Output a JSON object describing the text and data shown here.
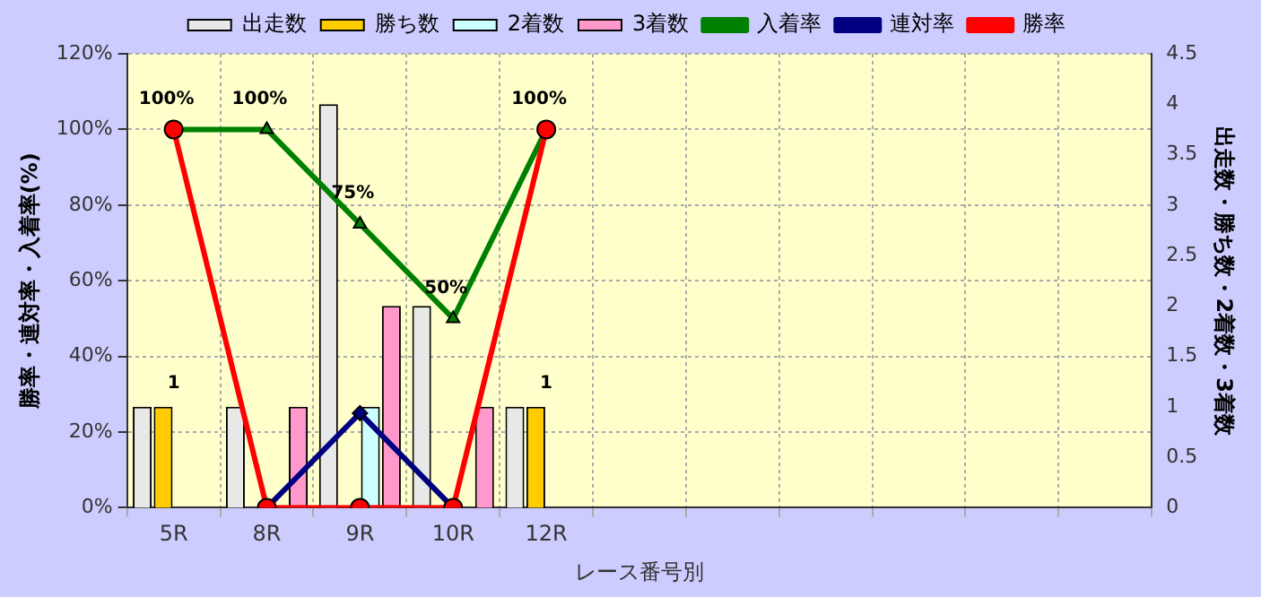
{
  "chart_data": {
    "type": "bar",
    "xlabel": "レース番号別",
    "ylabel": "勝率・連対率・入着率(%)",
    "y2label": "出走数・勝ち数・2着数・3着数",
    "categories": [
      "5R",
      "8R",
      "9R",
      "10R",
      "12R",
      null,
      null,
      null,
      null,
      null,
      null
    ],
    "series": [
      {
        "name": "出走数",
        "axis": "y2",
        "color": "#e8e8e8",
        "values": [
          1,
          1,
          4,
          2,
          1,
          null,
          null,
          null,
          null,
          null,
          null
        ]
      },
      {
        "name": "勝ち数",
        "axis": "y2",
        "color": "#ffcc00",
        "values": [
          1,
          0,
          0,
          0,
          1,
          null,
          null,
          null,
          null,
          null,
          null
        ],
        "value_labels": [
          "1",
          null,
          null,
          null,
          "1",
          null,
          null,
          null,
          null,
          null,
          null
        ]
      },
      {
        "name": "2着数",
        "axis": "y2",
        "color": "#ccffff",
        "values": [
          0,
          0,
          1,
          0,
          0,
          null,
          null,
          null,
          null,
          null,
          null
        ]
      },
      {
        "name": "3着数",
        "axis": "y2",
        "color": "#ff99cc",
        "values": [
          0,
          1,
          2,
          1,
          0,
          null,
          null,
          null,
          null,
          null,
          null
        ]
      },
      {
        "name": "入着率",
        "type": "line",
        "axis": "y",
        "color": "#008000",
        "marker": "triangle",
        "values": [
          100,
          100,
          75,
          50,
          100,
          null,
          null,
          null,
          null,
          null,
          null
        ],
        "value_labels": [
          "100%",
          "100%",
          "75%",
          "50%",
          "100%",
          null,
          null,
          null,
          null,
          null,
          null
        ]
      },
      {
        "name": "連対率",
        "type": "line",
        "axis": "y",
        "color": "#000080",
        "marker": "diamond",
        "values": [
          null,
          0,
          25,
          0,
          null,
          null,
          null,
          null,
          null,
          null,
          null
        ]
      },
      {
        "name": "勝率",
        "type": "line",
        "axis": "y",
        "color": "#ff0000",
        "marker": "circle",
        "values": [
          100,
          0,
          0,
          0,
          100,
          null,
          null,
          null,
          null,
          null,
          null
        ]
      }
    ],
    "ylim": [
      0,
      120
    ],
    "yticks": [
      {
        "value": 0,
        "label": "0%"
      },
      {
        "value": 20,
        "label": "20%"
      },
      {
        "value": 40,
        "label": "40%"
      },
      {
        "value": 60,
        "label": "60%"
      },
      {
        "value": 80,
        "label": "80%"
      },
      {
        "value": 100,
        "label": "100%"
      },
      {
        "value": 120,
        "label": "120%"
      }
    ],
    "y2lim": [
      0,
      4.5
    ],
    "y2ticks": [
      0,
      0.5,
      1,
      1.5,
      2,
      2.5,
      3,
      3.5,
      4,
      4.5
    ],
    "grid": true,
    "legend": "top"
  }
}
